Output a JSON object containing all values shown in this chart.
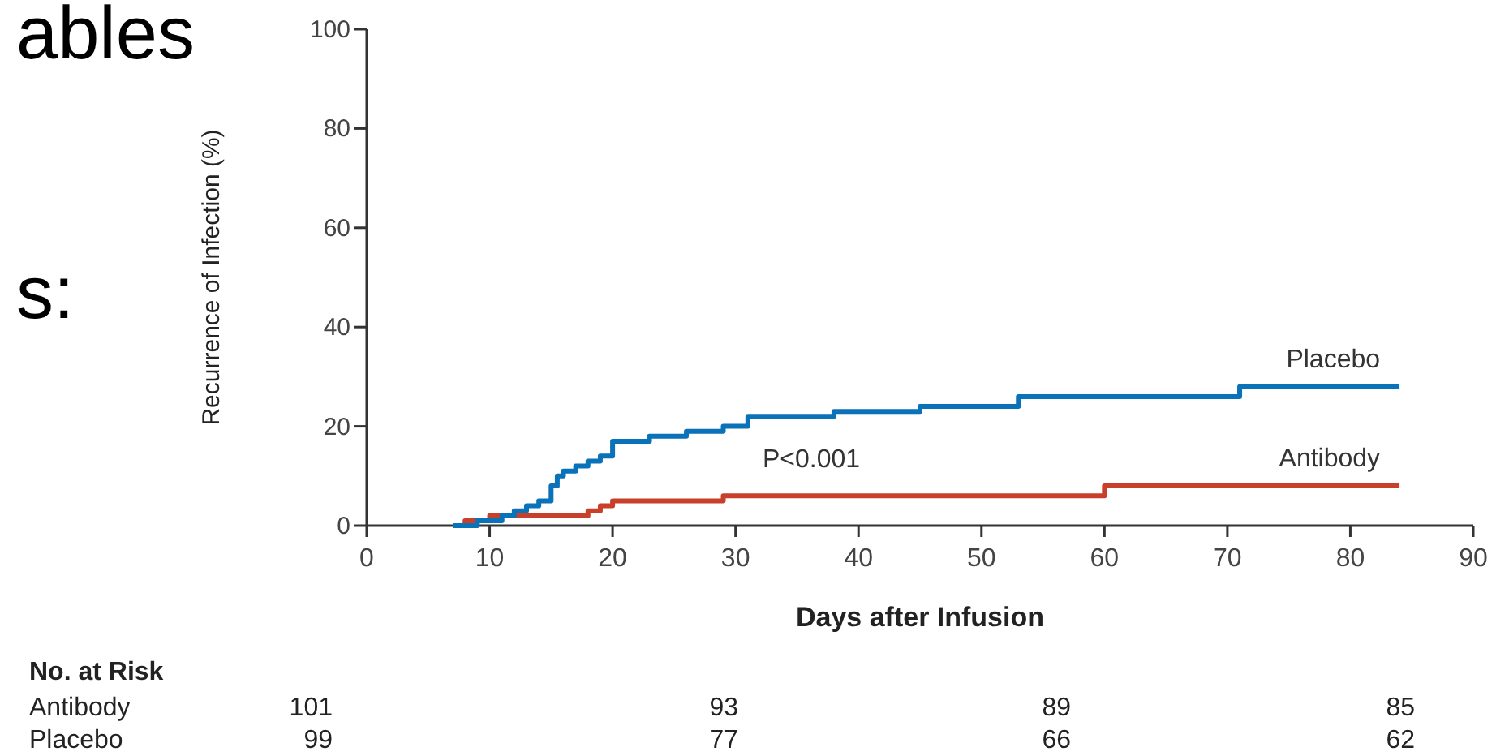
{
  "chart_data": {
    "type": "step",
    "xlabel": "Days after Infusion",
    "ylabel": "Recurrence of Infection (%)",
    "xlim": [
      0,
      90
    ],
    "xticks": [
      0,
      10,
      20,
      30,
      40,
      50,
      60,
      70,
      80,
      90
    ],
    "ylim": [
      0,
      100
    ],
    "yticks": [
      0,
      20,
      40,
      60,
      80,
      100
    ],
    "grid": false,
    "legend": false,
    "series": [
      {
        "name": "Antibody",
        "color": "#c8402a",
        "x": [
          7,
          8,
          10,
          18,
          19,
          20,
          29,
          60,
          84
        ],
        "values": [
          0,
          1,
          2,
          3,
          4,
          5,
          6,
          8,
          8
        ]
      },
      {
        "name": "Placebo",
        "color": "#0a72b8",
        "x": [
          7,
          9,
          11,
          12,
          13,
          14,
          15,
          15.5,
          16,
          17,
          18,
          19,
          20,
          23,
          26,
          29,
          31,
          38,
          45,
          53,
          71,
          84
        ],
        "values": [
          0,
          1,
          2,
          3,
          4,
          5,
          8,
          10,
          11,
          12,
          13,
          14,
          17,
          18,
          19,
          20,
          22,
          23,
          24,
          26,
          28,
          28
        ]
      }
    ],
    "annotations": [
      "ables",
      "s:",
      "P<0.001",
      "No. at Risk",
      "Antibody",
      "101",
      "93",
      "89",
      "85",
      "Placebo",
      "99",
      "77",
      "66",
      "62"
    ]
  }
}
